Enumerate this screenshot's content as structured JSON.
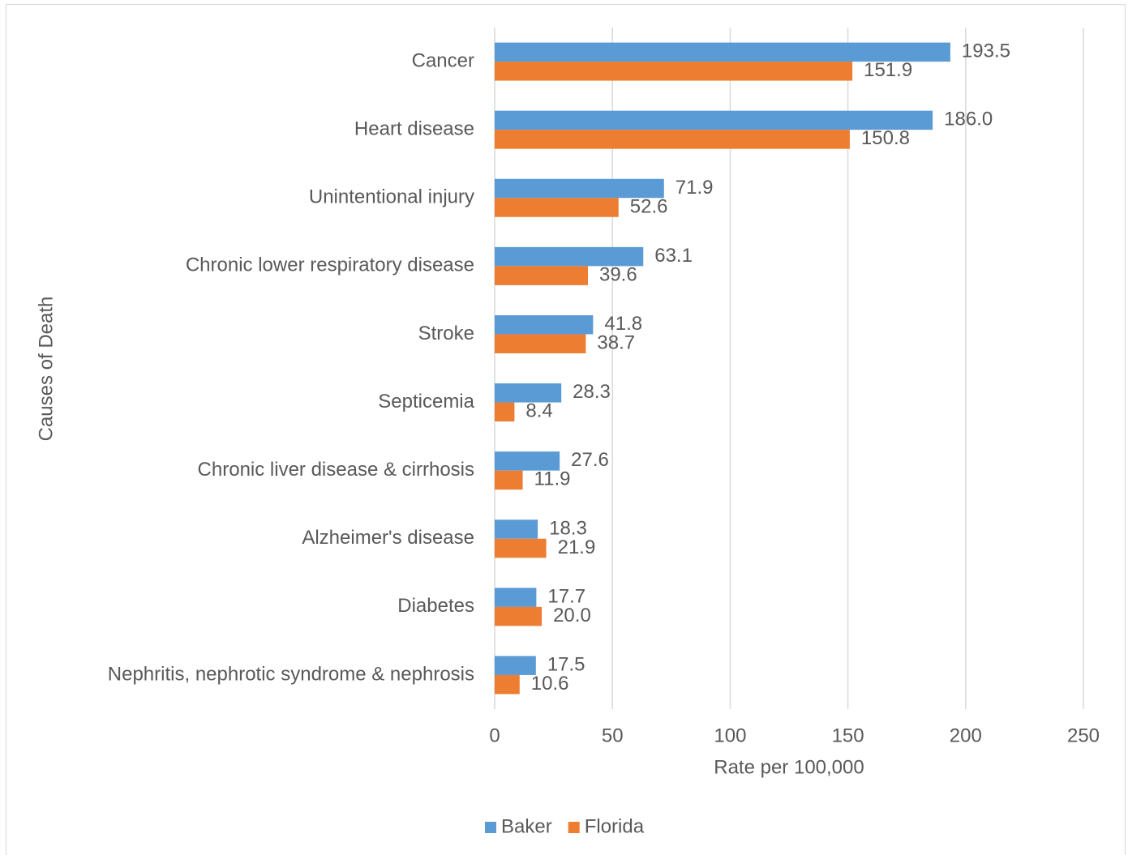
{
  "chart_data": {
    "type": "hbar",
    "x_label": "Rate per 100,000",
    "y_label": "Causes of Death",
    "categories": [
      "Cancer",
      "Heart disease",
      "Unintentional injury",
      "Chronic lower respiratory disease",
      "Stroke",
      "Septicemia",
      "Chronic liver disease & cirrhosis",
      "Alzheimer's disease",
      "Diabetes",
      "Nephritis, nephrotic syndrome & nephrosis"
    ],
    "series": [
      {
        "name": "Baker",
        "color": "#5b9bd5",
        "values": [
          193.5,
          186.0,
          71.9,
          63.1,
          41.8,
          28.3,
          27.6,
          18.3,
          17.7,
          17.5
        ],
        "value_labels": [
          "193.5",
          "186.0",
          "71.9",
          "63.1",
          "41.8",
          "28.3",
          "27.6",
          "18.3",
          "17.7",
          "17.5"
        ]
      },
      {
        "name": "Florida",
        "color": "#ed7d31",
        "values": [
          151.9,
          150.8,
          52.6,
          39.6,
          38.7,
          8.4,
          11.9,
          21.9,
          20.0,
          10.6
        ],
        "value_labels": [
          "151.9",
          "150.8",
          "52.6",
          "39.6",
          "38.7",
          "8.4",
          "11.9",
          "21.9",
          "20.0",
          "10.6"
        ]
      }
    ],
    "xlim": [
      0,
      250
    ],
    "xticks": [
      0,
      50,
      100,
      150,
      200,
      250
    ],
    "grid": true,
    "legend": "bottom"
  }
}
